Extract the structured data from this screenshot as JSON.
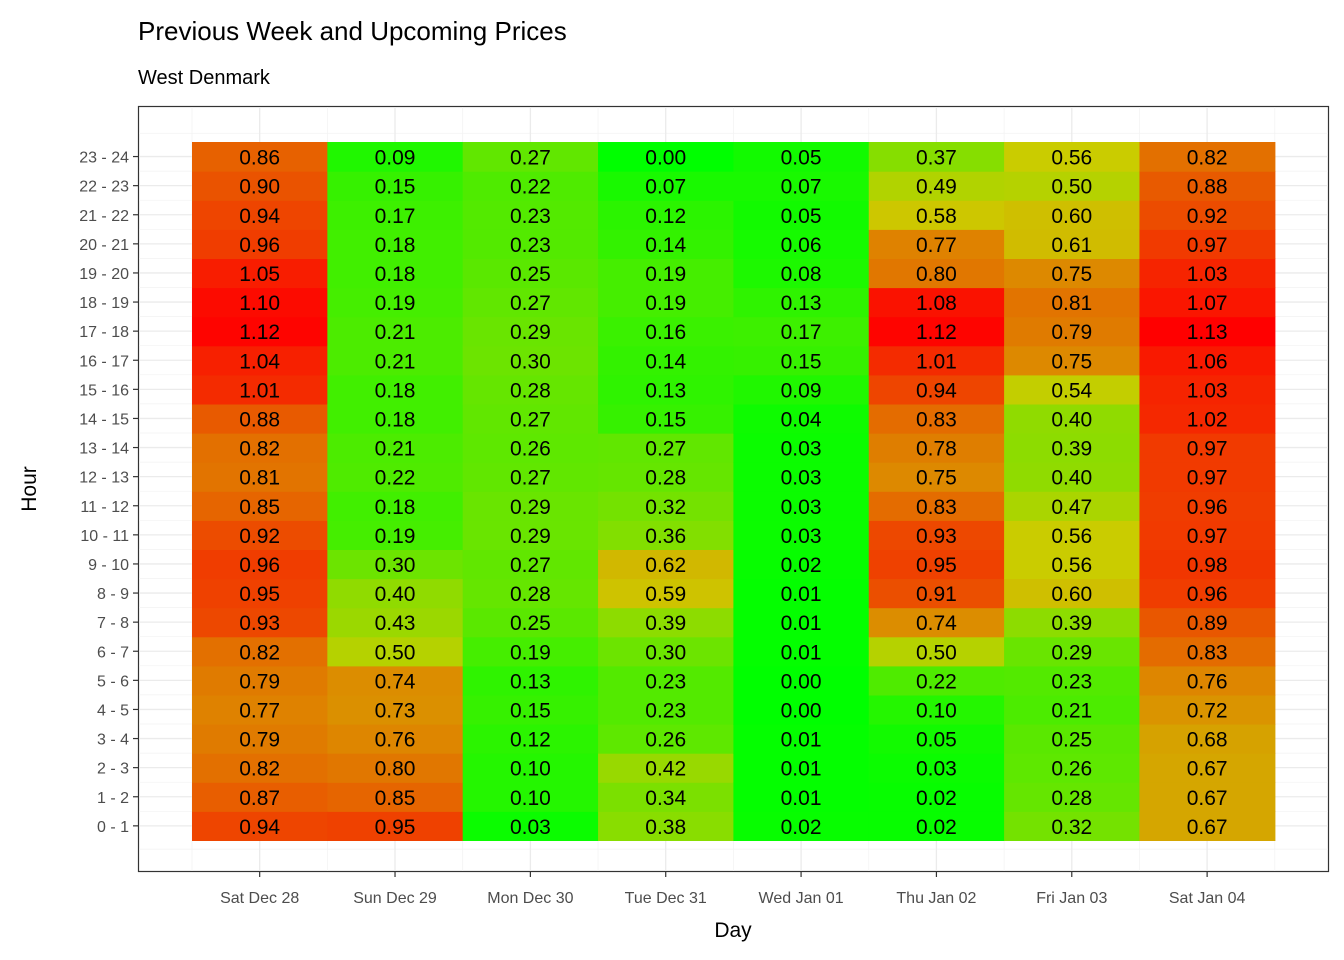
{
  "chart_data": {
    "type": "heatmap",
    "title": "Previous Week and Upcoming Prices",
    "subtitle": "West Denmark",
    "xlabel": "Day",
    "ylabel": "Hour",
    "x_categories": [
      "Sat Dec 28",
      "Sun Dec 29",
      "Mon Dec 30",
      "Tue Dec 31",
      "Wed Jan 01",
      "Thu Jan 02",
      "Fri Jan 03",
      "Sat Jan 04"
    ],
    "y_categories": [
      "0 - 1",
      "1 - 2",
      "2 - 3",
      "3 - 4",
      "4 - 5",
      "5 - 6",
      "6 - 7",
      "7 - 8",
      "8 - 9",
      "9 - 10",
      "10 - 11",
      "11 - 12",
      "12 - 13",
      "13 - 14",
      "14 - 15",
      "15 - 16",
      "16 - 17",
      "17 - 18",
      "18 - 19",
      "19 - 20",
      "20 - 21",
      "21 - 22",
      "22 - 23",
      "23 - 24"
    ],
    "values": [
      [
        0.94,
        0.87,
        0.82,
        0.79,
        0.77,
        0.79,
        0.82,
        0.93,
        0.95,
        0.96,
        0.92,
        0.85,
        0.81,
        0.82,
        0.88,
        1.01,
        1.04,
        1.12,
        1.1,
        1.05,
        0.96,
        0.94,
        0.9,
        0.86
      ],
      [
        0.95,
        0.85,
        0.8,
        0.76,
        0.73,
        0.74,
        0.5,
        0.43,
        0.4,
        0.3,
        0.19,
        0.18,
        0.22,
        0.21,
        0.18,
        0.18,
        0.21,
        0.21,
        0.19,
        0.18,
        0.18,
        0.17,
        0.15,
        0.09
      ],
      [
        0.03,
        0.1,
        0.1,
        0.12,
        0.15,
        0.13,
        0.19,
        0.25,
        0.28,
        0.27,
        0.29,
        0.29,
        0.27,
        0.26,
        0.27,
        0.28,
        0.3,
        0.29,
        0.27,
        0.25,
        0.23,
        0.23,
        0.22,
        0.27
      ],
      [
        0.38,
        0.34,
        0.42,
        0.26,
        0.23,
        0.23,
        0.3,
        0.39,
        0.59,
        0.62,
        0.36,
        0.32,
        0.28,
        0.27,
        0.15,
        0.13,
        0.14,
        0.16,
        0.19,
        0.19,
        0.14,
        0.12,
        0.07,
        0.0
      ],
      [
        0.02,
        0.01,
        0.01,
        0.01,
        0.0,
        0.0,
        0.01,
        0.01,
        0.01,
        0.02,
        0.03,
        0.03,
        0.03,
        0.03,
        0.04,
        0.09,
        0.15,
        0.17,
        0.13,
        0.08,
        0.06,
        0.05,
        0.07,
        0.05
      ],
      [
        0.02,
        0.02,
        0.03,
        0.05,
        0.1,
        0.22,
        0.5,
        0.74,
        0.91,
        0.95,
        0.93,
        0.83,
        0.75,
        0.78,
        0.83,
        0.94,
        1.01,
        1.12,
        1.08,
        0.8,
        0.77,
        0.58,
        0.49,
        0.37
      ],
      [
        0.32,
        0.28,
        0.26,
        0.25,
        0.21,
        0.23,
        0.29,
        0.39,
        0.6,
        0.56,
        0.56,
        0.47,
        0.4,
        0.39,
        0.4,
        0.54,
        0.75,
        0.79,
        0.81,
        0.75,
        0.61,
        0.6,
        0.5,
        0.56
      ],
      [
        0.67,
        0.67,
        0.67,
        0.68,
        0.72,
        0.76,
        0.83,
        0.89,
        0.96,
        0.98,
        0.97,
        0.96,
        0.97,
        0.97,
        1.02,
        1.03,
        1.06,
        1.13,
        1.07,
        1.03,
        0.97,
        0.92,
        0.88,
        0.82
      ]
    ],
    "color_scale": {
      "low": "#00ff00",
      "mid": "#cccc00",
      "high": "#ff0000",
      "min": 0.0,
      "max": 1.13
    },
    "grid": true,
    "legend": "none"
  }
}
